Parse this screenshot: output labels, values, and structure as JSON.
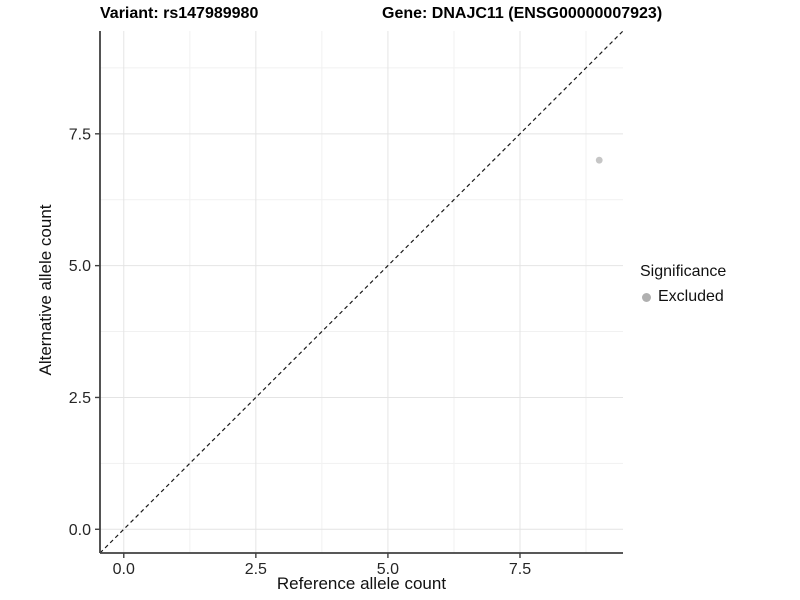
{
  "page": {
    "background": "#ffffff"
  },
  "chart_data": {
    "type": "scatter",
    "title_left": "Variant: rs147989980",
    "title_right": "Gene: DNAJC11 (ENSG00000007923)",
    "xlabel": "Reference allele count",
    "ylabel": "Alternative allele count",
    "xlim": [
      -0.45,
      9.45
    ],
    "ylim": [
      -0.45,
      9.45
    ],
    "x_ticks": [
      0,
      2.5,
      5,
      7.5
    ],
    "x_tick_labels": [
      "0.0",
      "2.5",
      "5.0",
      "7.5"
    ],
    "y_ticks": [
      0,
      2.5,
      5,
      7.5
    ],
    "y_tick_labels": [
      "0.0",
      "2.5",
      "5.0",
      "7.5"
    ],
    "x_minor_ticks": [
      1.25,
      3.75,
      6.25,
      8.75
    ],
    "y_minor_ticks": [
      1.25,
      3.75,
      6.25,
      8.75
    ],
    "grid": {
      "enabled": true,
      "major_color": "#e4e4e4",
      "minor_color": "#f1f1f1"
    },
    "axis_line_color": "#404040",
    "tick_label_color": "#262626",
    "reference_line": {
      "kind": "identity",
      "style": "dashed",
      "color": "#1a1a1a"
    },
    "series": [
      {
        "name": "Excluded",
        "color": "#c6c6c6",
        "points": [
          {
            "x": 9,
            "y": 7
          }
        ]
      }
    ],
    "legend": {
      "title": "Significance",
      "position": "right",
      "entries": [
        {
          "label": "Excluded",
          "color": "#b0b0b0"
        }
      ]
    }
  }
}
